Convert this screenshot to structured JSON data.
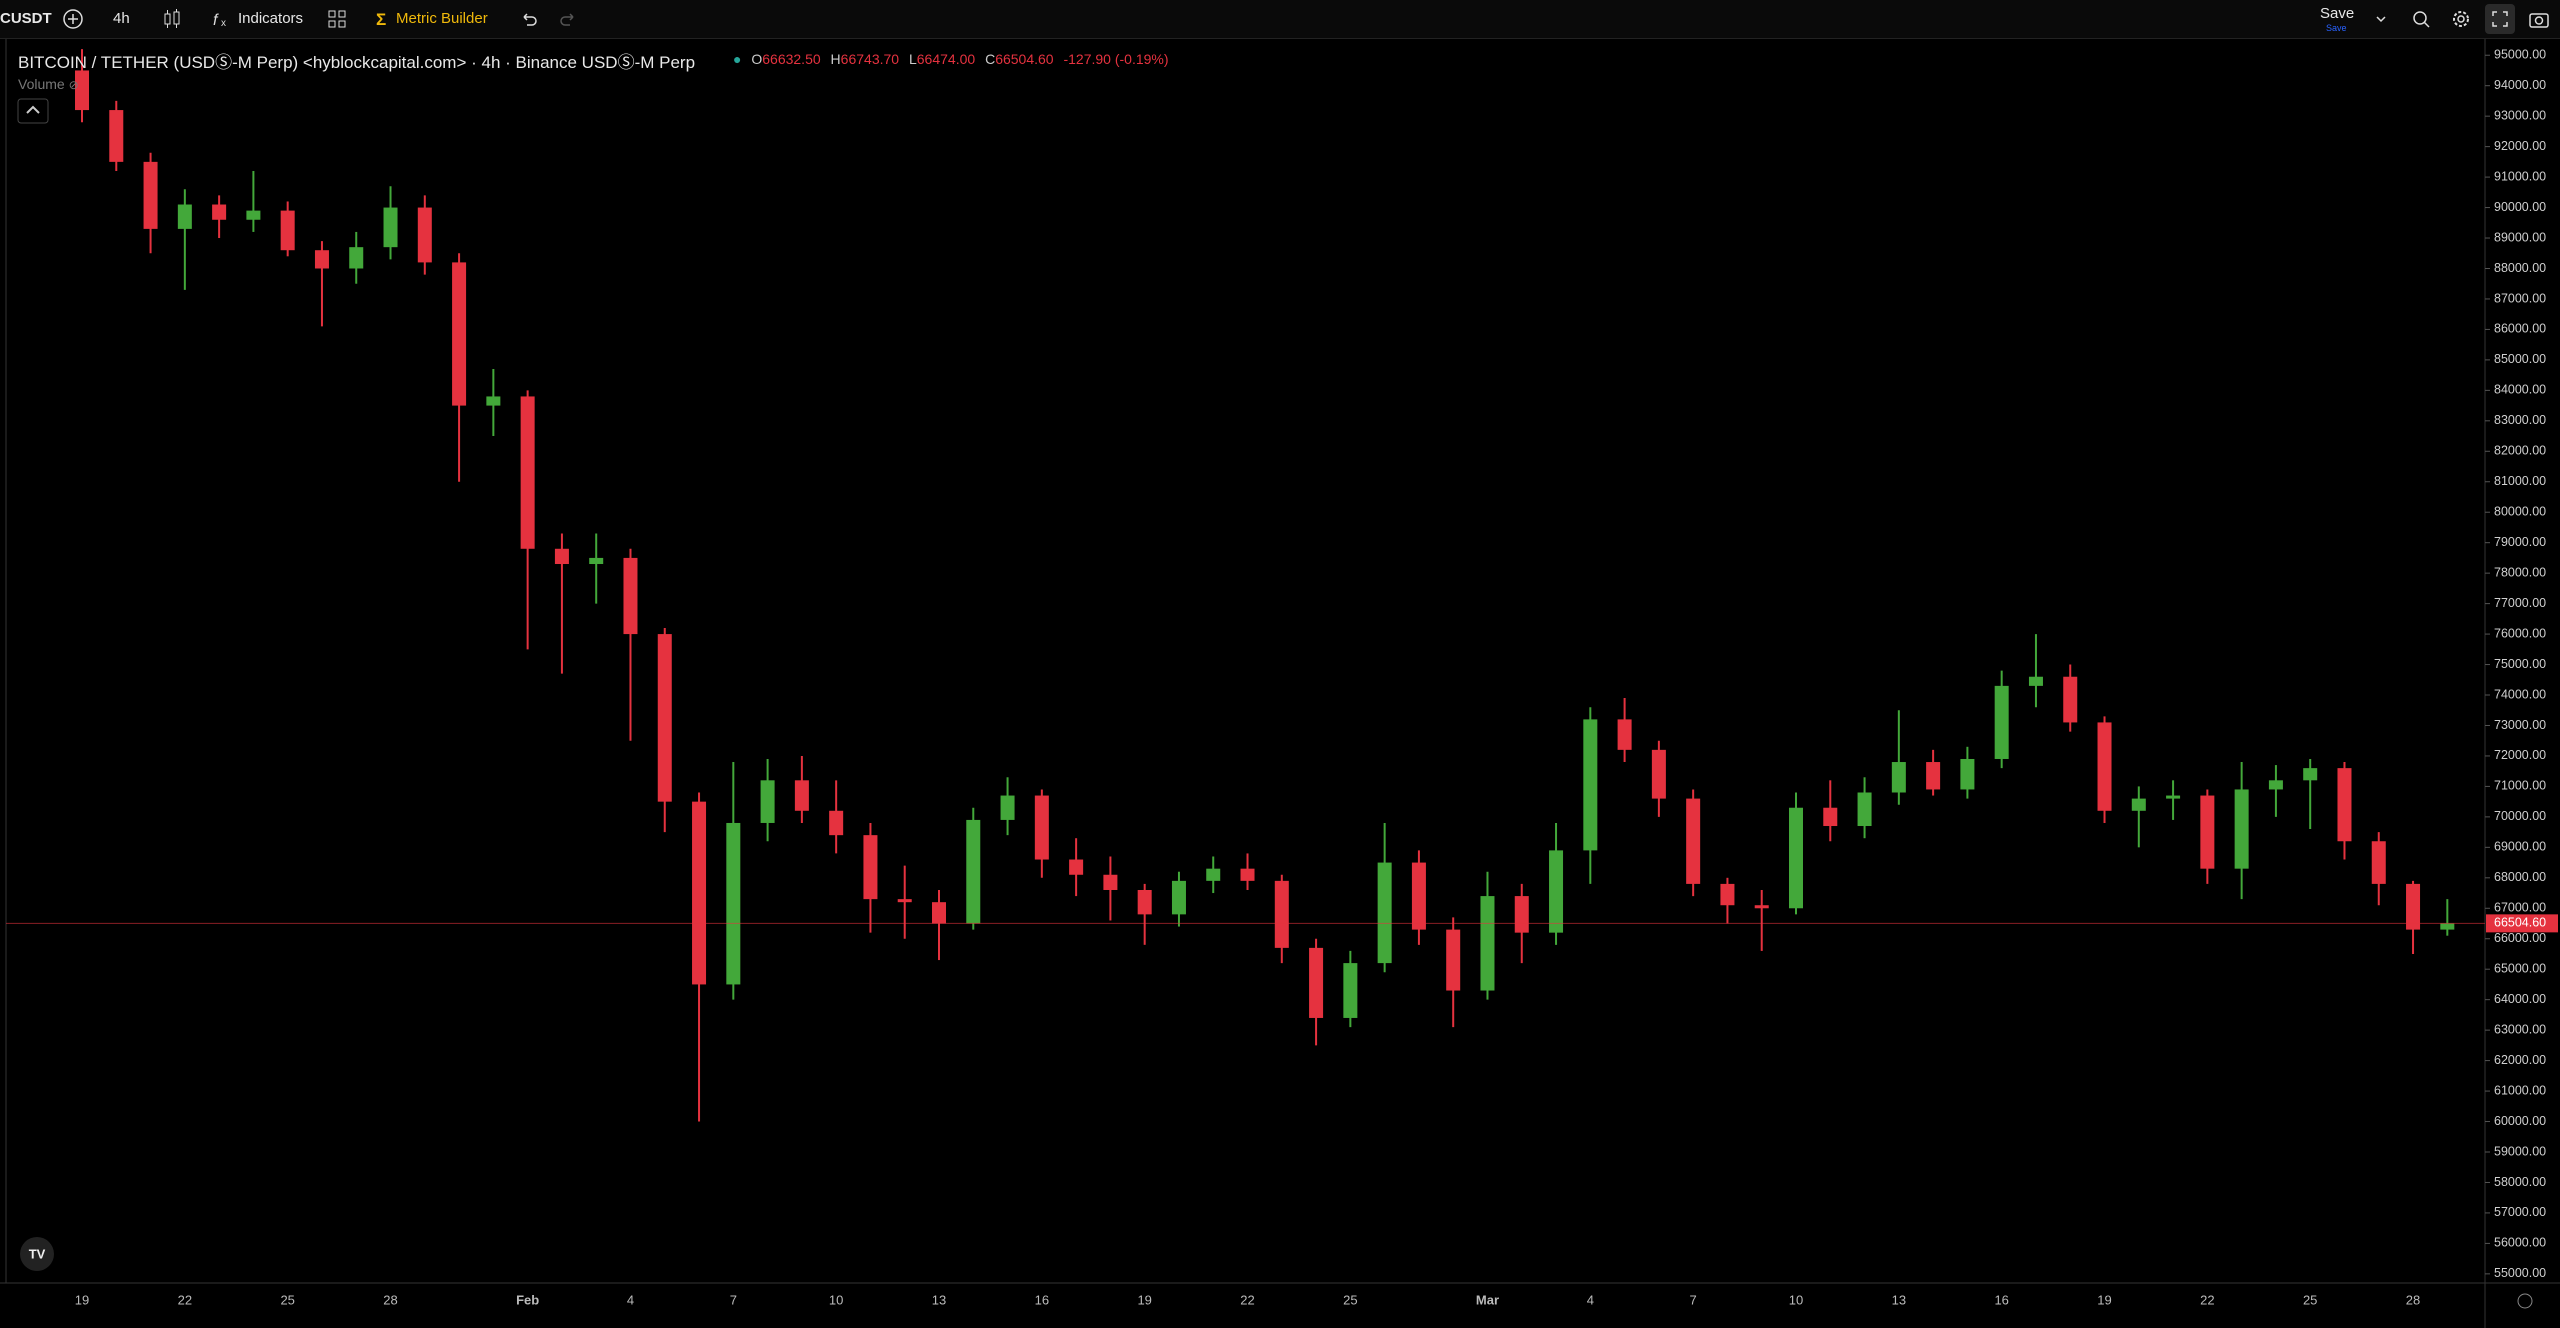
{
  "toolbar": {
    "symbol": "CUSDT",
    "interval": "4h",
    "indicators": "Indicators",
    "metric_builder": "Metric Builder",
    "save": "Save",
    "save_hint": "Save"
  },
  "legend": {
    "title": "BITCOIN / TETHER (USDⓈ-M Perp) <hyblockcapital.com> · 4h · Binance USDⓈ-M Perp",
    "open_label": "O",
    "open": "66632.50",
    "high_label": "H",
    "high": "66743.70",
    "low_label": "L",
    "low": "66474.00",
    "close_label": "C",
    "close": "66504.60",
    "change": "-127.90 (-0.19%)",
    "volume": "Volume"
  },
  "chart_data": {
    "type": "candlestick",
    "up_color": "#43a83a",
    "down_color": "#e5323f",
    "categories": [
      "19",
      null,
      null,
      "22",
      null,
      null,
      "25",
      null,
      null,
      "28",
      null,
      null,
      null,
      "Feb",
      null,
      null,
      "4",
      null,
      null,
      "7",
      null,
      null,
      "10",
      null,
      null,
      "13",
      null,
      null,
      "16",
      null,
      null,
      "19",
      null,
      null,
      "22",
      null,
      null,
      "25",
      null,
      null,
      null,
      "Mar",
      null,
      null,
      "4",
      null,
      null,
      "7",
      null,
      null,
      "10",
      null,
      null,
      "13",
      null,
      null,
      "16",
      null,
      null,
      "19",
      null,
      null,
      "22",
      null,
      null,
      "25",
      null,
      null,
      "28",
      null
    ],
    "open": [
      94500,
      93200,
      91500,
      89300,
      90100,
      89600,
      89900,
      88600,
      88000,
      88700,
      90000,
      88200,
      83500,
      83800,
      78800,
      78300,
      78500,
      76000,
      70500,
      64500,
      69800,
      71200,
      70200,
      69400,
      67300,
      67200,
      66500,
      69900,
      70700,
      68600,
      68100,
      67600,
      66800,
      67900,
      68300,
      67900,
      65700,
      63400,
      65200,
      68500,
      66300,
      64300,
      67400,
      66200,
      68900,
      73200,
      72200,
      70600,
      67800,
      67100,
      67000,
      70300,
      69700,
      70800,
      71800,
      70900,
      71900,
      74300,
      74600,
      73100,
      70200,
      70600,
      70700,
      68300,
      70900,
      71200,
      71600,
      69200,
      67800,
      66300
    ],
    "high": [
      95200,
      93500,
      91800,
      90600,
      90400,
      91200,
      90200,
      88900,
      89200,
      90700,
      90400,
      88500,
      84700,
      84000,
      79300,
      79300,
      78800,
      76200,
      70800,
      71800,
      71900,
      72000,
      71200,
      69800,
      68400,
      67600,
      70300,
      71300,
      70900,
      69300,
      68700,
      67800,
      68200,
      68700,
      68800,
      68100,
      66000,
      65600,
      69800,
      68900,
      66700,
      68200,
      67800,
      69800,
      73600,
      73900,
      72500,
      70900,
      68000,
      67600,
      70800,
      71200,
      71300,
      73500,
      72200,
      72300,
      74800,
      76000,
      75000,
      73300,
      71000,
      71200,
      70900,
      71800,
      71700,
      71900,
      71800,
      69500,
      67900,
      67300
    ],
    "low": [
      92800,
      91200,
      88500,
      87300,
      89000,
      89200,
      88400,
      86100,
      87500,
      88300,
      87800,
      81000,
      82500,
      75500,
      74700,
      77000,
      72500,
      69500,
      60000,
      64000,
      69200,
      69800,
      68800,
      66200,
      66000,
      65300,
      66300,
      69400,
      68000,
      67400,
      66600,
      65800,
      66400,
      67500,
      67600,
      65200,
      62500,
      63100,
      64900,
      65800,
      63100,
      64000,
      65200,
      65800,
      67800,
      71800,
      70000,
      67400,
      66500,
      65600,
      66800,
      69200,
      69300,
      70400,
      70700,
      70600,
      71600,
      73600,
      72800,
      69800,
      69000,
      69900,
      67800,
      67300,
      70000,
      69600,
      68600,
      67100,
      65500,
      66100
    ],
    "close": [
      93200,
      91500,
      89300,
      90100,
      89600,
      89900,
      88600,
      88000,
      88700,
      90000,
      88200,
      83500,
      83800,
      78800,
      78300,
      78500,
      76000,
      70500,
      64500,
      69800,
      71200,
      70200,
      69400,
      67300,
      67200,
      66500,
      69900,
      70700,
      68600,
      68100,
      67600,
      66800,
      67900,
      68300,
      67900,
      65700,
      63400,
      65200,
      68500,
      66300,
      64300,
      67400,
      66200,
      68900,
      73200,
      72200,
      70600,
      67800,
      67100,
      67000,
      70300,
      69700,
      70800,
      71800,
      70900,
      71900,
      74300,
      74600,
      73100,
      70200,
      70600,
      70700,
      68300,
      70900,
      71200,
      71600,
      69200,
      67800,
      66300,
      66504.6
    ],
    "ylim": [
      54700,
      95500
    ],
    "yticks": [
      {
        "value": 55000,
        "label": "55000.00"
      },
      {
        "value": 56000,
        "label": "56000.00"
      },
      {
        "value": 57000,
        "label": "57000.00"
      },
      {
        "value": 58000,
        "label": "58000.00"
      },
      {
        "value": 59000,
        "label": "59000.00"
      },
      {
        "value": 60000,
        "label": "60000.00"
      },
      {
        "value": 61000,
        "label": "61000.00"
      },
      {
        "value": 62000,
        "label": "62000.00"
      },
      {
        "value": 63000,
        "label": "63000.00"
      },
      {
        "value": 64000,
        "label": "64000.00"
      },
      {
        "value": 65000,
        "label": "65000.00"
      },
      {
        "value": 66000,
        "label": "66000.00"
      },
      {
        "value": 67000,
        "label": "67000.00"
      },
      {
        "value": 68000,
        "label": "68000.00"
      },
      {
        "value": 69000,
        "label": "69000.00"
      },
      {
        "value": 70000,
        "label": "70000.00"
      },
      {
        "value": 71000,
        "label": "71000.00"
      },
      {
        "value": 72000,
        "label": "72000.00"
      },
      {
        "value": 73000,
        "label": "73000.00"
      },
      {
        "value": 74000,
        "label": "74000.00"
      },
      {
        "value": 75000,
        "label": "75000.00"
      },
      {
        "value": 76000,
        "label": "76000.00"
      },
      {
        "value": 77000,
        "label": "77000.00"
      },
      {
        "value": 78000,
        "label": "78000.00"
      },
      {
        "value": 79000,
        "label": "79000.00"
      },
      {
        "value": 80000,
        "label": "80000.00"
      },
      {
        "value": 81000,
        "label": "81000.00"
      },
      {
        "value": 82000,
        "label": "82000.00"
      },
      {
        "value": 83000,
        "label": "83000.00"
      },
      {
        "value": 84000,
        "label": "84000.00"
      },
      {
        "value": 85000,
        "label": "85000.00"
      },
      {
        "value": 86000,
        "label": "86000.00"
      },
      {
        "value": 87000,
        "label": "87000.00"
      },
      {
        "value": 88000,
        "label": "88000.00"
      },
      {
        "value": 89000,
        "label": "89000.00"
      },
      {
        "value": 90000,
        "label": "90000.00"
      },
      {
        "value": 91000,
        "label": "91000.00"
      },
      {
        "value": 92000,
        "label": "92000.00"
      },
      {
        "value": 93000,
        "label": "93000.00"
      },
      {
        "value": 94000,
        "label": "94000.00"
      },
      {
        "value": 95000,
        "label": "95000.00"
      }
    ],
    "last_price": {
      "value": 66504.6,
      "label": "66504.60"
    },
    "last_price_color": "#e5323f"
  }
}
